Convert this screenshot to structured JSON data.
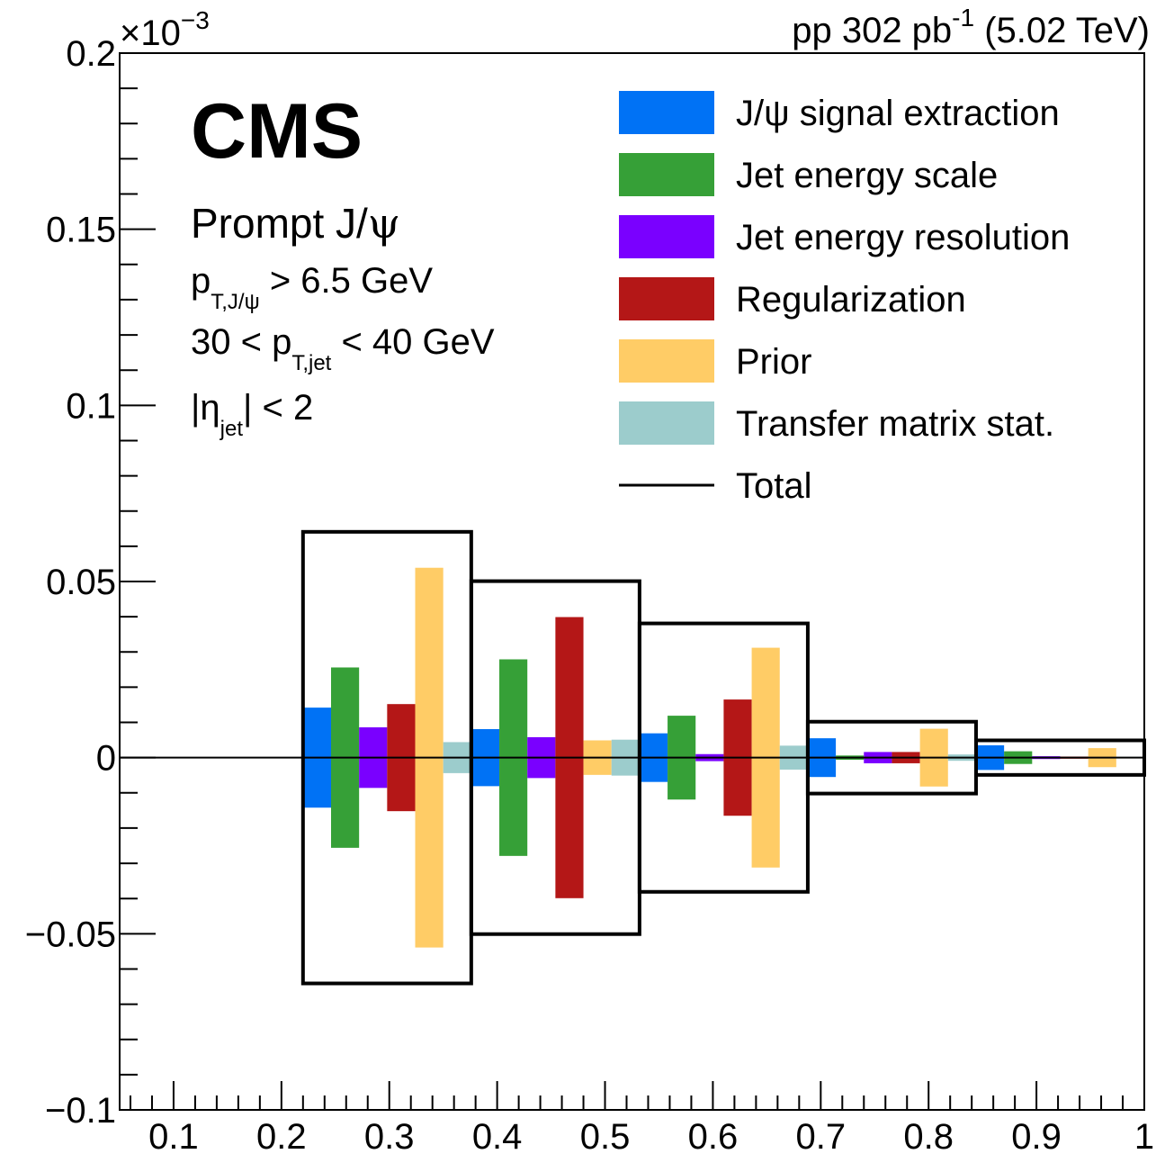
{
  "chart_data": {
    "type": "bar",
    "header_right": {
      "prefix": "pp 302 pb",
      "exponent": "-1",
      "suffix": " (5.02 TeV)"
    },
    "y_multiplier": {
      "base": "×10",
      "exponent": "−3"
    },
    "xlim": [
      0.05,
      1.0
    ],
    "ylim": [
      -0.1,
      0.2
    ],
    "x_ticks": [
      {
        "value": 0.1,
        "label": "0.1"
      },
      {
        "value": 0.2,
        "label": "0.2"
      },
      {
        "value": 0.3,
        "label": "0.3"
      },
      {
        "value": 0.4,
        "label": "0.4"
      },
      {
        "value": 0.5,
        "label": "0.5"
      },
      {
        "value": 0.6,
        "label": "0.6"
      },
      {
        "value": 0.7,
        "label": "0.7"
      },
      {
        "value": 0.8,
        "label": "0.8"
      },
      {
        "value": 0.9,
        "label": "0.9"
      },
      {
        "value": 1.0,
        "label": "1"
      }
    ],
    "y_ticks": [
      {
        "value": 0.2,
        "label": "0.2"
      },
      {
        "value": 0.15,
        "label": "0.15"
      },
      {
        "value": 0.1,
        "label": "0.1"
      },
      {
        "value": 0.05,
        "label": "0.05"
      },
      {
        "value": 0.0,
        "label": "0"
      },
      {
        "value": -0.05,
        "label": "−0.05"
      },
      {
        "value": -0.1,
        "label": "−0.1"
      }
    ],
    "bin_edges": [
      0.22,
      0.376,
      0.532,
      0.688,
      0.844,
      1.0
    ],
    "series": [
      {
        "name": "J/ψ signal extraction",
        "color": "#0072f5",
        "values": [
          0.0142,
          0.0081,
          0.0069,
          0.0055,
          0.0035
        ]
      },
      {
        "name": "Jet energy scale",
        "color": "#36a037",
        "values": [
          0.0256,
          0.0279,
          0.0119,
          0.0006,
          0.0018
        ]
      },
      {
        "name": "Jet energy resolution",
        "color": "#7a00ff",
        "values": [
          0.0086,
          0.0058,
          0.001,
          0.0016,
          0.0004
        ]
      },
      {
        "name": "Regularization",
        "color": "#b41717",
        "values": [
          0.0152,
          0.0399,
          0.0165,
          0.0016,
          0.0003
        ]
      },
      {
        "name": "Prior",
        "color": "#ffcc66",
        "values": [
          0.0539,
          0.0049,
          0.0312,
          0.0082,
          0.0027
        ]
      },
      {
        "name": "Transfer matrix stat.",
        "color": "#9ccccc",
        "values": [
          0.0044,
          0.0051,
          0.0034,
          0.0009,
          0.0002
        ]
      }
    ],
    "total": {
      "name": "Total",
      "values": [
        0.0641,
        0.0501,
        0.0381,
        0.0102,
        0.0049
      ]
    },
    "labels": {
      "experiment": "CMS",
      "prompt_prefix": "Prompt J/",
      "psi": "ψ",
      "pt_symbol": "p",
      "pt_jpsi_sub": "T,J/ψ",
      "pt_jpsi_cut": " > 6.5 GeV",
      "jet_pt_low": "30 < ",
      "pt_jet_sub": "T,jet",
      "jet_pt_high": " < 40 GeV",
      "eta_open": "|η",
      "eta_sub": "jet",
      "eta_close": "| < 2"
    },
    "legend_position": "top-right"
  }
}
